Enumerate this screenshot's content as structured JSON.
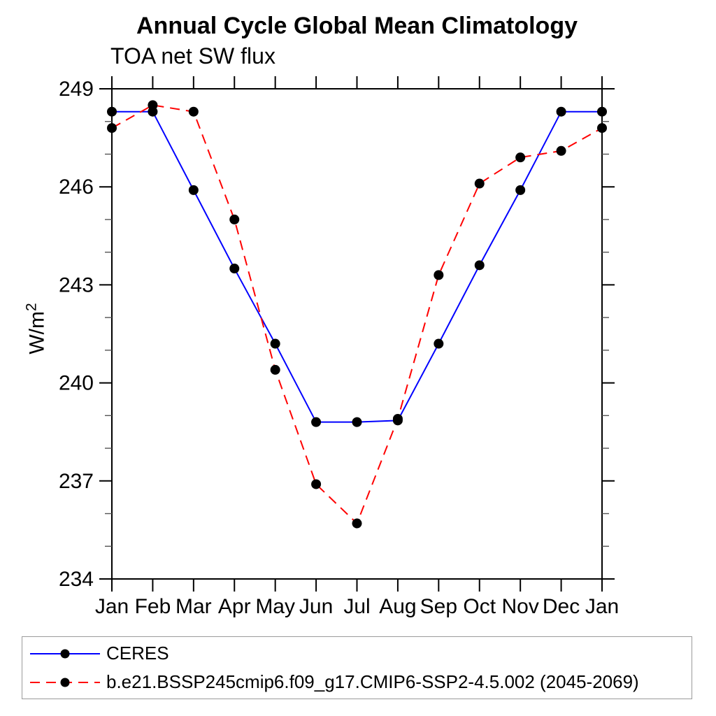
{
  "title": "Annual Cycle Global Mean Climatology",
  "subtitle": "TOA net SW flux",
  "labels": {
    "ylabel_base": "W/m",
    "ylabel_sup": "2"
  },
  "colors": {
    "ceres_line": "#0000ff",
    "model_line": "#ff0000",
    "marker": "#000000",
    "axis": "#000000",
    "minor_tick": "#555555",
    "legend_border": "#9a9a9a",
    "background": "#ffffff"
  },
  "chart_data": {
    "type": "line",
    "title": "Annual Cycle Global Mean Climatology",
    "subtitle": "TOA net SW flux",
    "xlabel": "",
    "ylabel": "W/m²",
    "categories": [
      "Jan",
      "Feb",
      "Mar",
      "Apr",
      "May",
      "Jun",
      "Jul",
      "Aug",
      "Sep",
      "Oct",
      "Nov",
      "Dec",
      "Jan"
    ],
    "ylim": [
      234,
      249
    ],
    "y_ticks": [
      234,
      237,
      240,
      243,
      246,
      249
    ],
    "y_minor_tick_step": 1,
    "grid": false,
    "legend_position": "bottom-box",
    "series": [
      {
        "name": "CERES",
        "color": "#0000ff",
        "line_style": "solid",
        "marker": "filled-circle",
        "marker_color": "#000000",
        "values": [
          248.3,
          248.3,
          245.9,
          243.5,
          241.2,
          238.8,
          238.8,
          238.85,
          241.2,
          243.6,
          245.9,
          248.3,
          248.3
        ]
      },
      {
        "name": "b.e21.BSSP245cmip6.f09_g17.CMIP6-SSP2-4.5.002 (2045-2069)",
        "color": "#ff0000",
        "line_style": "dashed",
        "marker": "filled-circle",
        "marker_color": "#000000",
        "values": [
          247.8,
          248.5,
          248.3,
          245.0,
          240.4,
          236.9,
          235.7,
          238.9,
          243.3,
          246.1,
          246.9,
          247.1,
          247.8
        ]
      }
    ]
  }
}
